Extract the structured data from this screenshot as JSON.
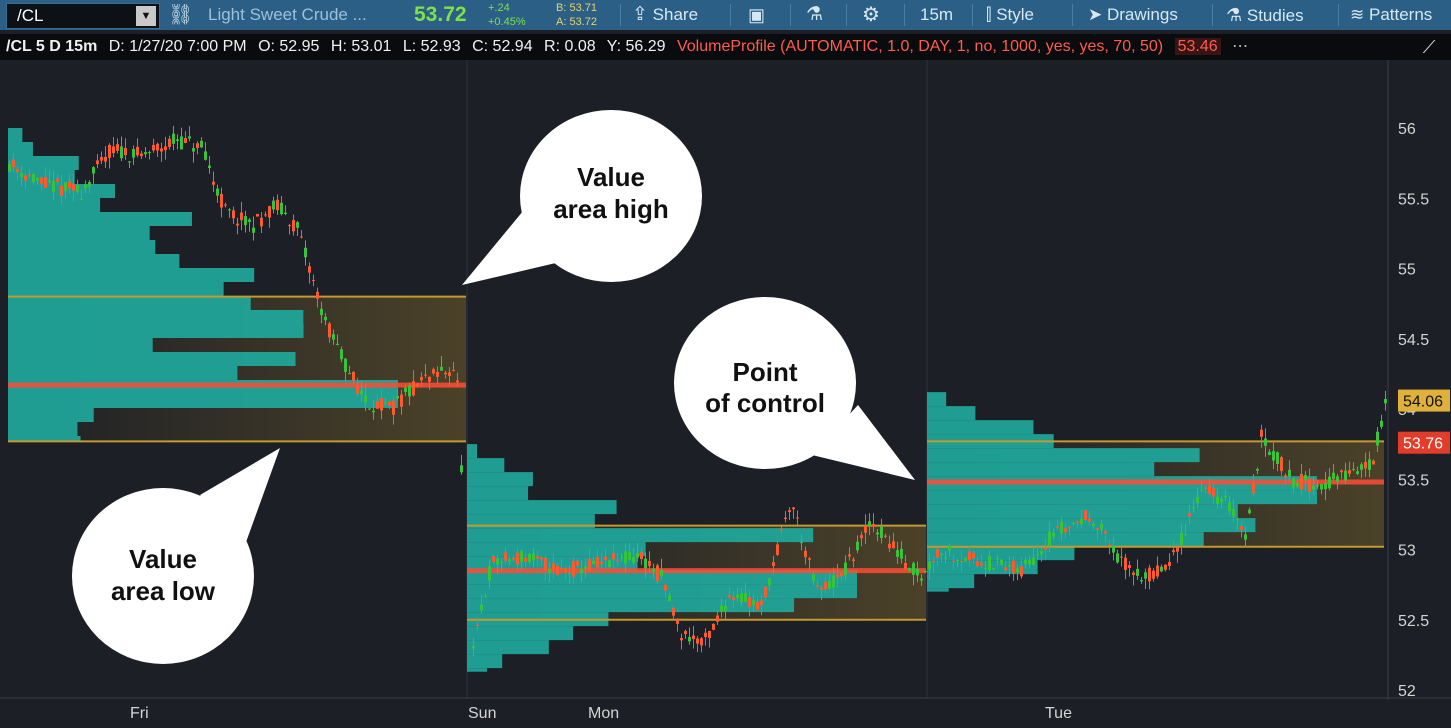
{
  "toolbar": {
    "symbol": "/CL",
    "description": "Light Sweet Crude ...",
    "last_price": "53.72",
    "net_change": "+.24",
    "pct_change": "+0.45%",
    "bid": "B: 53.71",
    "ask": "A: 53.72",
    "share_label": "Share",
    "timeframe": "15m",
    "style_label": "Style",
    "drawings_label": "Drawings",
    "studies_label": "Studies",
    "patterns_label": "Patterns",
    "colors": {
      "bar": "#2b5f86",
      "price_green": "#7ee04a"
    }
  },
  "infobar": {
    "spec": "/CL 5 D 15m",
    "date": "D: 1/27/20 7:00 PM",
    "open": "O: 52.95",
    "high": "H: 53.01",
    "low": "L: 52.93",
    "close": "C: 52.94",
    "range": "R: 0.08",
    "y": "Y: 56.29",
    "study": "VolumeProfile (AUTOMATIC, 1.0, DAY, 1, no, 1000, yes, yes, 70, 50)",
    "study_value": "53.46"
  },
  "chart_data": {
    "type": "candlestick",
    "y_ticks": [
      "56",
      "55.5",
      "55",
      "54.5",
      "54",
      "53.5",
      "53",
      "52.5",
      "52"
    ],
    "ylim": [
      52.0,
      56.35
    ],
    "x_labels": [
      "Fri",
      "Sun",
      "Mon",
      "Tue"
    ],
    "price_labels": {
      "upper": "54.06",
      "last": "53.76"
    },
    "value_area": [
      {
        "session": "Fri",
        "vah": 54.8,
        "poc": 54.17,
        "val": 53.77
      },
      {
        "session": "Sun-Mon",
        "vah": 53.17,
        "poc": 52.85,
        "val": 52.5
      },
      {
        "session": "Tue",
        "vah": 53.77,
        "poc": 53.48,
        "val": 53.02
      }
    ],
    "annotations": [
      {
        "text_lines": [
          "Value",
          "area high"
        ]
      },
      {
        "text_lines": [
          "Point",
          "of control"
        ]
      },
      {
        "text_lines": [
          "Value",
          "area low"
        ]
      }
    ],
    "colors": {
      "up": "#37c43a",
      "down": "#ff5a2e",
      "profile": "#1fa89c",
      "value_line": "#c49a2e",
      "poc_line": "#ff4b35",
      "background": "#1c1f26"
    }
  }
}
